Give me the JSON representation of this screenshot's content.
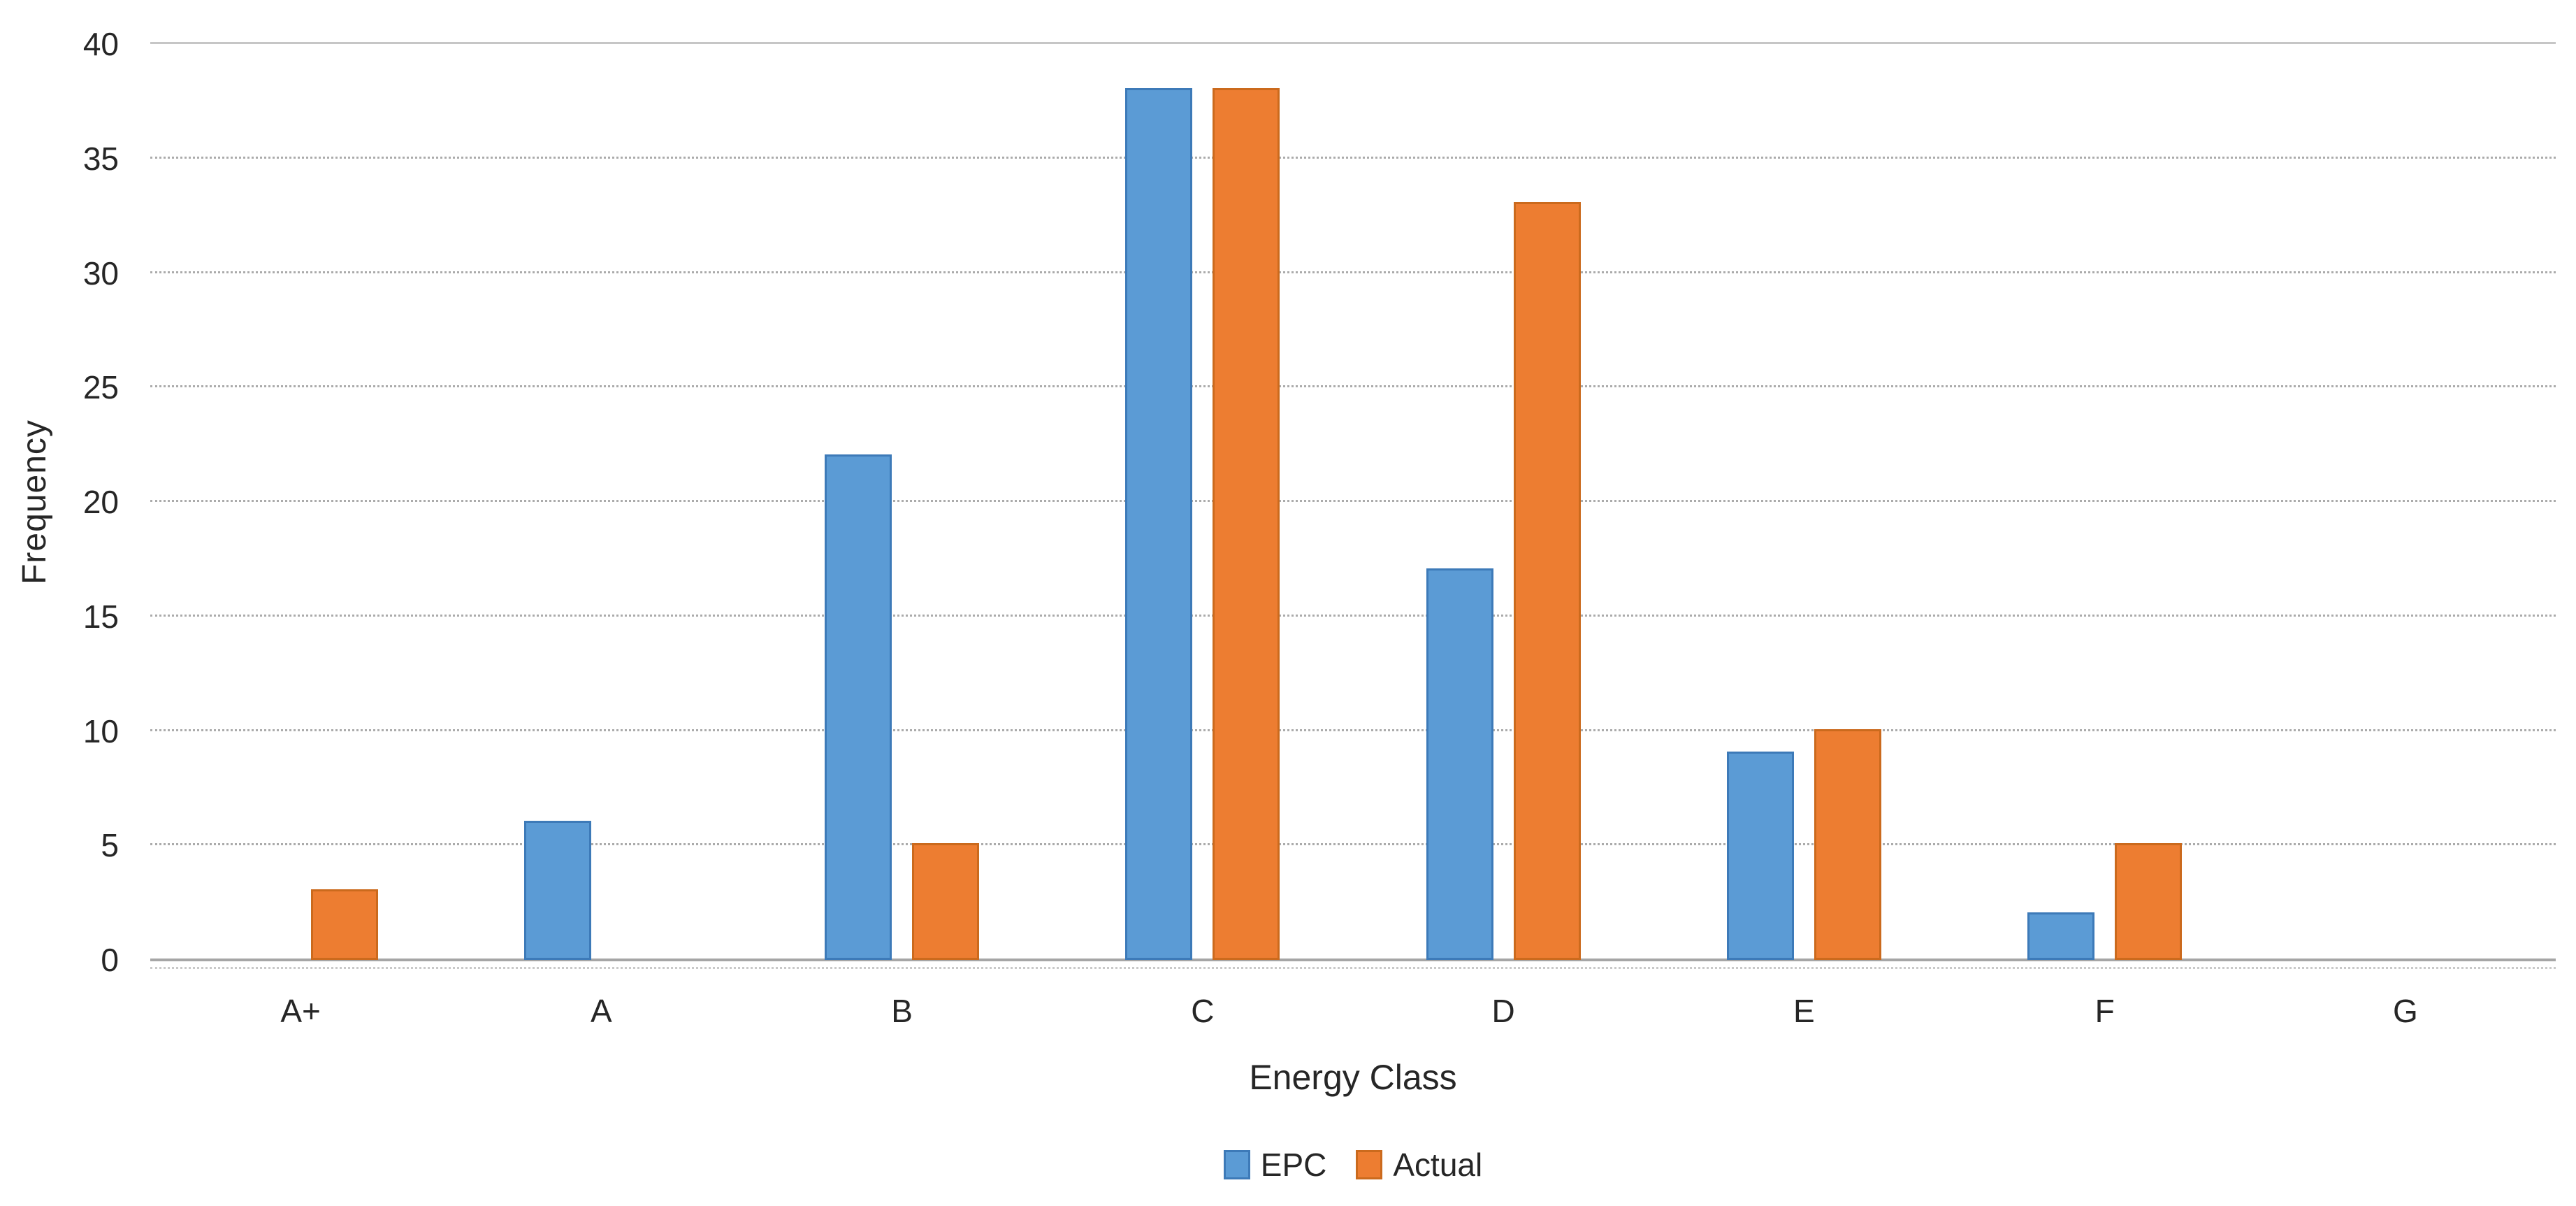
{
  "chart_data": {
    "type": "bar",
    "title": "",
    "xlabel": "Energy Class",
    "ylabel": "Frequency",
    "categories": [
      "A+",
      "A",
      "B",
      "C",
      "D",
      "E",
      "F",
      "G"
    ],
    "series": [
      {
        "name": "EPC",
        "color": "#5B9BD5",
        "border_color": "#3D7AB8",
        "values": [
          0,
          6,
          22,
          38,
          17,
          9,
          2,
          0
        ]
      },
      {
        "name": "Actual",
        "color": "#ED7D31",
        "border_color": "#CB6A1D",
        "values": [
          3,
          0,
          5,
          38,
          33,
          10,
          5,
          0
        ]
      }
    ],
    "ylim": [
      0,
      40
    ],
    "yticks": [
      0,
      5,
      10,
      15,
      20,
      25,
      30,
      35,
      40
    ],
    "grid": "horizontal-dotted",
    "legend_position": "bottom-center",
    "legend_items": [
      "EPC",
      "Actual"
    ]
  }
}
